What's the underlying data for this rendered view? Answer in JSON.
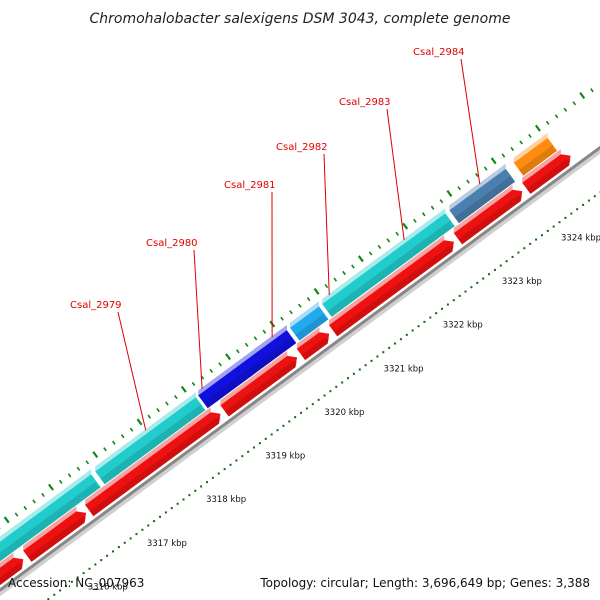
{
  "title": "Chromohalobacter salexigens DSM 3043, complete genome",
  "footer": {
    "accession": "Accession: NC_007963",
    "topology": "Topology: circular; Length: 3,696,649 bp; Genes: 3,388"
  },
  "colors": {
    "forward_cds": "#22cccc",
    "reverse_cds": "#ee1111",
    "backbone": "#888888",
    "label": "#dd0000",
    "tick": "#118811",
    "gc_skew_tick": "#116611"
  },
  "genes": [
    {
      "locus": "Csal_2979",
      "color": "#22cccc",
      "strand": "+"
    },
    {
      "locus": "Csal_2980",
      "color": "#22cccc",
      "strand": "+"
    },
    {
      "locus": "Csal_2981",
      "color": "#1111dd",
      "strand": "+"
    },
    {
      "locus": "Csal_2982",
      "color": "#22aaee",
      "strand": "+"
    },
    {
      "locus": "Csal_2983",
      "color": "#22cccc",
      "strand": "+"
    },
    {
      "locus": "Csal_2984",
      "color": "#4a7fb0",
      "strand": "+"
    }
  ],
  "extra_feature": {
    "color": "#ff8c10",
    "strand": "+"
  },
  "ticks": [
    {
      "label": "3316 kbp"
    },
    {
      "label": "3317 kbp"
    },
    {
      "label": "3318 kbp"
    },
    {
      "label": "3319 kbp"
    },
    {
      "label": "3320 kbp"
    },
    {
      "label": "3321 kbp"
    },
    {
      "label": "3322 kbp"
    },
    {
      "label": "3323 kbp"
    },
    {
      "label": "3324 kbp"
    }
  ]
}
